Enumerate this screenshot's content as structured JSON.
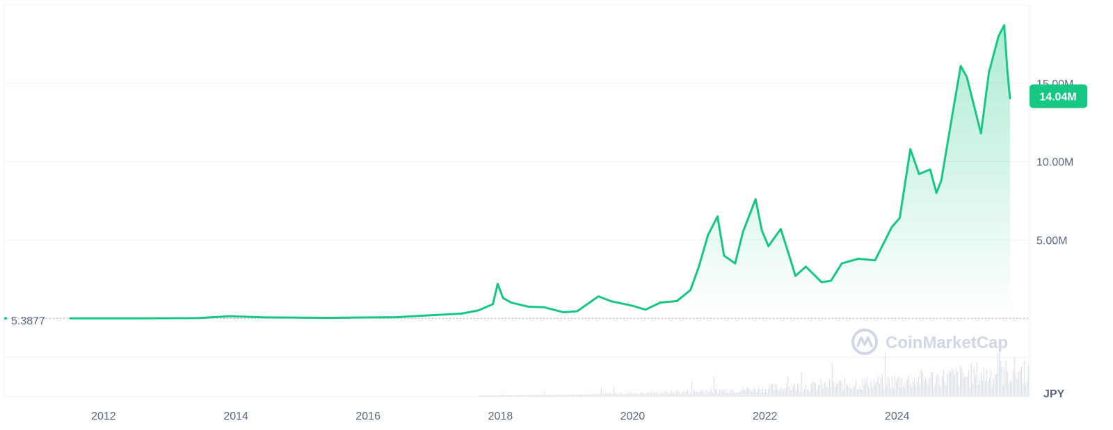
{
  "currency_label": "JPY",
  "watermark_text": "CoinMarketCap",
  "colors": {
    "line": "#16c784",
    "grid": "#eff2f5",
    "text": "#58667e",
    "volume": "#dfe4ea"
  },
  "chart_data": {
    "type": "line",
    "title": "",
    "xlabel": "",
    "ylabel": "",
    "x_ticks": [
      "2012",
      "2014",
      "2016",
      "2018",
      "2020",
      "2022",
      "2024"
    ],
    "y_ticks": [
      "5.00M",
      "10.00M",
      "15.00M"
    ],
    "y_tick_values": [
      5000000,
      10000000,
      15000000
    ],
    "ylim": [
      -5000000,
      20000000
    ],
    "xlim": [
      "2010-07-01",
      "2026-01-01"
    ],
    "grid": true,
    "start_value_label": "5.3877",
    "current_value_label": "14.04M",
    "series": [
      {
        "x": [
          "2011-07-01",
          "2012-07-01",
          "2013-06-01",
          "2013-11-30",
          "2014-06-01",
          "2015-06-01",
          "2016-06-01",
          "2017-06-01",
          "2017-09-01",
          "2017-11-20",
          "2017-12-17",
          "2018-01-15",
          "2018-03-01",
          "2018-06-01",
          "2018-09-01",
          "2018-12-15",
          "2019-03-01",
          "2019-06-26",
          "2019-09-01",
          "2020-01-01",
          "2020-03-12",
          "2020-06-01",
          "2020-09-01",
          "2020-11-15",
          "2021-01-01",
          "2021-02-20",
          "2021-04-14",
          "2021-05-20",
          "2021-07-20",
          "2021-09-01",
          "2021-11-10",
          "2021-12-15",
          "2022-01-20",
          "2022-03-29",
          "2022-05-15",
          "2022-06-18",
          "2022-08-15",
          "2022-11-10",
          "2023-01-01",
          "2023-03-01",
          "2023-06-01",
          "2023-09-01",
          "2023-12-01",
          "2024-01-15",
          "2024-03-14",
          "2024-05-01",
          "2024-07-01",
          "2024-08-05",
          "2024-09-01",
          "2024-11-01",
          "2024-12-17",
          "2025-01-20",
          "2025-04-08",
          "2025-05-22",
          "2025-07-14",
          "2025-08-14",
          "2025-09-01",
          "2025-09-15"
        ],
        "values": [
          5.3877,
          700,
          12000,
          130000,
          60000,
          30000,
          70000,
          300000,
          500000,
          900000,
          2200000,
          1300000,
          1000000,
          750000,
          700000,
          380000,
          450000,
          1400000,
          1100000,
          800000,
          550000,
          1000000,
          1100000,
          1800000,
          3300000,
          5300000,
          6500000,
          4000000,
          3500000,
          5500000,
          7600000,
          5600000,
          4600000,
          5700000,
          4000000,
          2700000,
          3300000,
          2300000,
          2400000,
          3500000,
          3800000,
          3700000,
          5800000,
          6400000,
          10800000,
          9200000,
          9500000,
          8000000,
          8800000,
          13000000,
          16100000,
          15400000,
          11800000,
          15700000,
          18000000,
          18700000,
          15800000,
          14040000
        ]
      }
    ]
  }
}
